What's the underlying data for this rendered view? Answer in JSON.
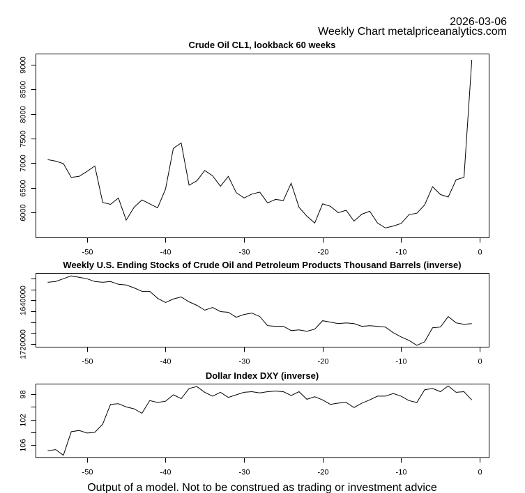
{
  "header": {
    "date": "2026-03-06",
    "subtitle": "Weekly Chart metalpriceanalytics.com"
  },
  "footer": {
    "disclaimer": "Output of a model. Not to be construed as trading or investment advice"
  },
  "chart_data": [
    {
      "type": "line",
      "title": "Crude Oil CL1, lookback 60 weeks",
      "xlabel": "",
      "ylabel": "",
      "inverse": false,
      "xlim": [
        -56.5,
        1.2
      ],
      "ylim": [
        5480,
        9220
      ],
      "xticks": [
        -50,
        -40,
        -30,
        -20,
        -10,
        0
      ],
      "xtick_labels": [
        "-50",
        "-40",
        "-30",
        "-20",
        "-10",
        "0"
      ],
      "yticks": [
        6000,
        6500,
        7000,
        7500,
        8000,
        8500,
        9000
      ],
      "ytick_labels": [
        "6000",
        "6500",
        "7000",
        "7500",
        "8000",
        "8500",
        "9000"
      ],
      "grid": false,
      "x": [
        -55,
        -54,
        -53,
        -52,
        -51,
        -50,
        -49,
        -48,
        -47,
        -46,
        -45,
        -44,
        -43,
        -42,
        -41,
        -40,
        -39,
        -38,
        -37,
        -36,
        -35,
        -34,
        -33,
        -32,
        -31,
        -30,
        -29,
        -28,
        -27,
        -26,
        -25,
        -24,
        -23,
        -22,
        -21,
        -20,
        -19,
        -18,
        -17,
        -16,
        -15,
        -14,
        -13,
        -12,
        -11,
        -10,
        -9,
        -8,
        -7,
        -6,
        -5,
        -4,
        -3,
        -2,
        -1
      ],
      "values": [
        7070,
        7040,
        6990,
        6710,
        6730,
        6830,
        6940,
        6200,
        6160,
        6290,
        5840,
        6100,
        6250,
        6170,
        6090,
        6470,
        7300,
        7410,
        6550,
        6640,
        6850,
        6740,
        6530,
        6730,
        6400,
        6290,
        6370,
        6410,
        6190,
        6260,
        6240,
        6590,
        6100,
        5920,
        5780,
        6170,
        6120,
        5990,
        6040,
        5820,
        5960,
        6020,
        5780,
        5680,
        5720,
        5770,
        5950,
        5980,
        6150,
        6520,
        6360,
        6310,
        6660,
        6710,
        9100
      ]
    },
    {
      "type": "line",
      "title": "Weekly U.S. Ending Stocks of Crude Oil and Petroleum Products Thousand Barrels (inverse)",
      "xlabel": "",
      "ylabel": "",
      "inverse": true,
      "xlim": [
        -56.5,
        1.2
      ],
      "ylim": [
        1590000,
        1726000
      ],
      "xticks": [
        -50,
        -40,
        -30,
        -20,
        -10,
        0
      ],
      "xtick_labels": [
        "-50",
        "-40",
        "-30",
        "-20",
        "-10",
        "0"
      ],
      "yticks": [
        1600000,
        1620000,
        1640000,
        1660000,
        1680000,
        1700000,
        1720000
      ],
      "ytick_labels": [
        "",
        "",
        "1640000",
        "",
        "",
        "",
        "1720000"
      ],
      "grid": false,
      "x": [
        -55,
        -54,
        -53,
        -52,
        -51,
        -50,
        -49,
        -48,
        -47,
        -46,
        -45,
        -44,
        -43,
        -42,
        -41,
        -40,
        -39,
        -38,
        -37,
        -36,
        -35,
        -34,
        -33,
        -32,
        -31,
        -30,
        -29,
        -28,
        -27,
        -26,
        -25,
        -24,
        -23,
        -22,
        -21,
        -20,
        -19,
        -18,
        -17,
        -16,
        -15,
        -14,
        -13,
        -12,
        -11,
        -10,
        -9,
        -8,
        -7,
        -6,
        -5,
        -4,
        -3,
        -2,
        -1
      ],
      "values": [
        1606500,
        1605000,
        1600000,
        1594800,
        1597400,
        1600000,
        1605200,
        1606500,
        1605200,
        1610300,
        1611600,
        1616800,
        1623200,
        1623200,
        1636100,
        1643900,
        1637400,
        1633500,
        1642600,
        1649000,
        1658000,
        1652900,
        1660600,
        1661900,
        1670900,
        1665800,
        1663200,
        1669700,
        1686500,
        1687700,
        1687700,
        1695500,
        1694200,
        1696800,
        1692900,
        1677400,
        1680000,
        1682600,
        1681300,
        1682600,
        1687700,
        1686500,
        1687700,
        1689000,
        1699400,
        1707100,
        1713500,
        1722600,
        1716100,
        1690300,
        1689000,
        1669700,
        1681300,
        1683900,
        1682600
      ]
    },
    {
      "type": "line",
      "title": "Dollar Index DXY (inverse)",
      "xlabel": "",
      "ylabel": "",
      "inverse": true,
      "xlim": [
        -56.5,
        1.2
      ],
      "ylim": [
        96.4,
        108.0
      ],
      "xticks": [
        -50,
        -40,
        -30,
        -20,
        -10,
        0
      ],
      "xtick_labels": [
        "-50",
        "-40",
        "-30",
        "-20",
        "-10",
        "0"
      ],
      "yticks": [
        98,
        100,
        102,
        104,
        106
      ],
      "ytick_labels": [
        "98",
        "",
        "102",
        "",
        "106"
      ],
      "grid": false,
      "x": [
        -55,
        -54,
        -53,
        -52,
        -51,
        -50,
        -49,
        -48,
        -47,
        -46,
        -45,
        -44,
        -43,
        -42,
        -41,
        -40,
        -39,
        -38,
        -37,
        -36,
        -35,
        -34,
        -33,
        -32,
        -31,
        -30,
        -29,
        -28,
        -27,
        -26,
        -25,
        -24,
        -23,
        -22,
        -21,
        -20,
        -19,
        -18,
        -17,
        -16,
        -15,
        -14,
        -13,
        -12,
        -11,
        -10,
        -9,
        -8,
        -7,
        -6,
        -5,
        -4,
        -3,
        -2,
        -1
      ],
      "values": [
        106.9,
        106.7,
        107.6,
        103.9,
        103.7,
        104.1,
        104.0,
        102.7,
        99.6,
        99.5,
        100.0,
        100.3,
        101.0,
        99.0,
        99.3,
        99.1,
        98.1,
        98.7,
        97.1,
        96.8,
        97.7,
        98.3,
        97.7,
        98.5,
        98.1,
        97.7,
        97.6,
        97.8,
        97.6,
        97.5,
        97.6,
        98.2,
        97.6,
        98.8,
        98.4,
        98.9,
        99.6,
        99.4,
        99.3,
        100.1,
        99.4,
        98.9,
        98.3,
        98.3,
        97.9,
        98.3,
        99.0,
        99.3,
        97.3,
        97.1,
        97.6,
        96.7,
        97.7,
        97.6,
        98.9
      ]
    }
  ]
}
